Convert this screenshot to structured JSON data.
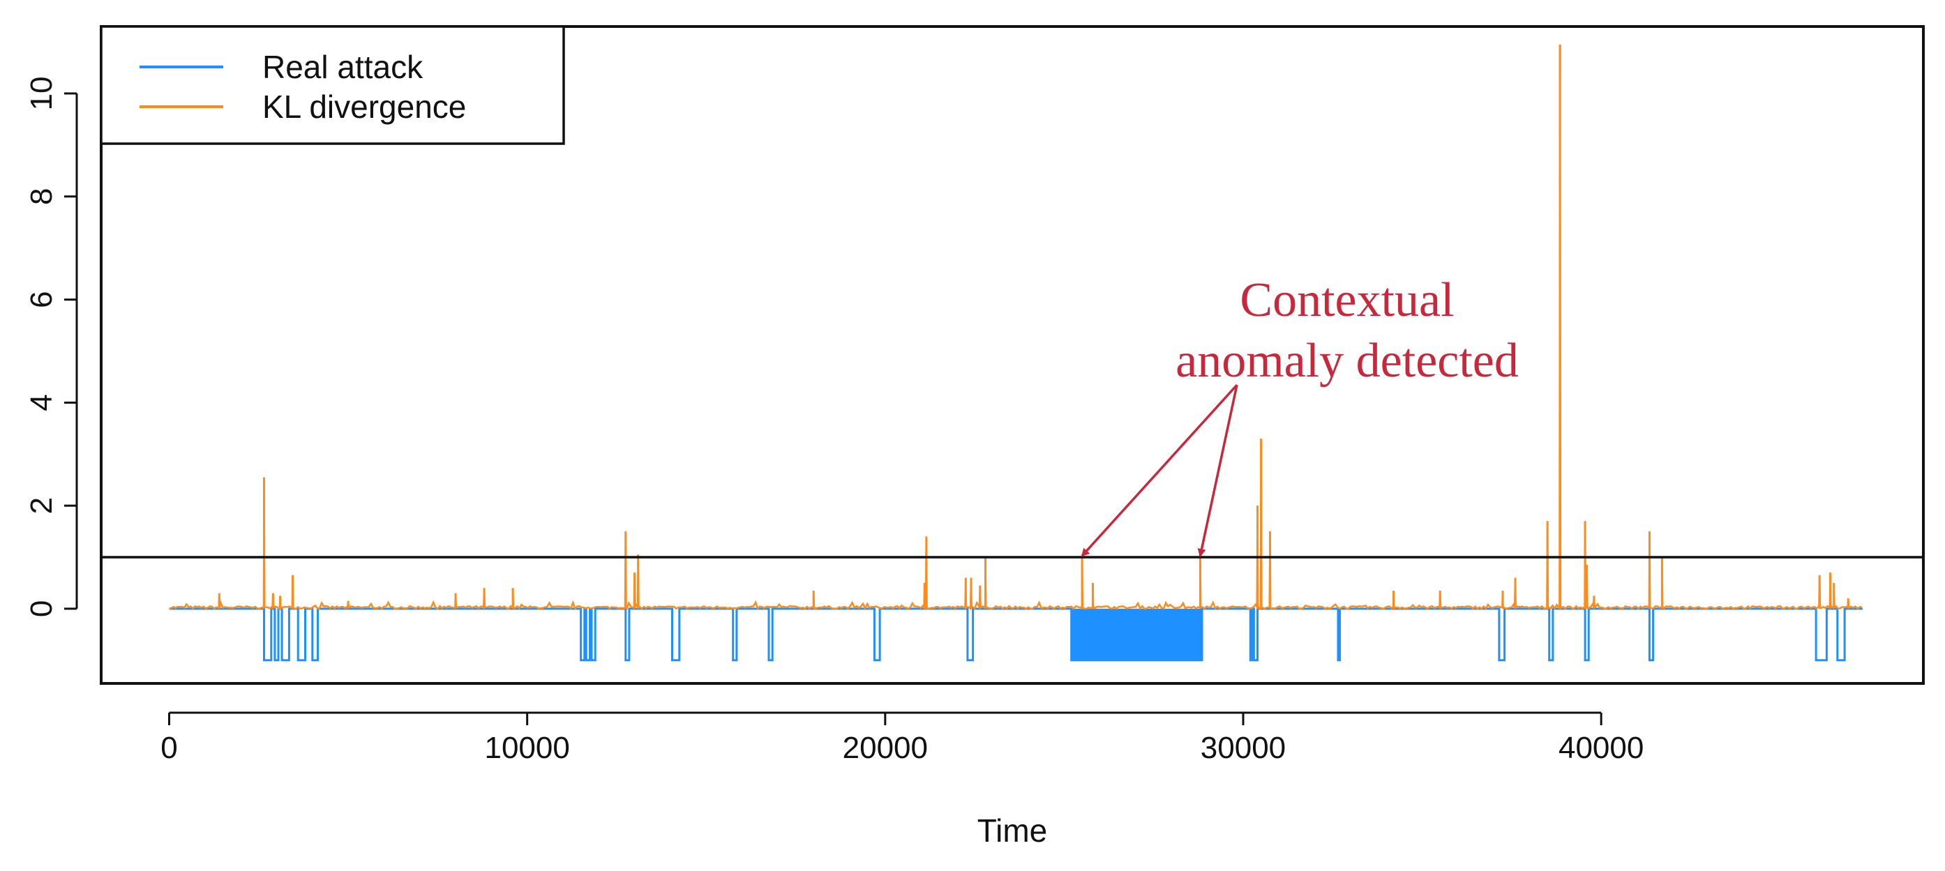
{
  "chart_data": {
    "type": "line",
    "title": "",
    "xlabel": "Time",
    "ylabel": "",
    "xlim": [
      -1900,
      49000
    ],
    "ylim": [
      -1.45,
      11.3
    ],
    "x_ticks": [
      0,
      10000,
      20000,
      30000,
      40000
    ],
    "x_tick_labels": [
      "0",
      "10000",
      "20000",
      "30000",
      "40000"
    ],
    "y_ticks": [
      0,
      2,
      4,
      6,
      8,
      10
    ],
    "y_tick_labels": [
      "0",
      "2",
      "4",
      "6",
      "8",
      "10"
    ],
    "grid": false,
    "legend_position": "top-left",
    "threshold": 1,
    "series": [
      {
        "name": "Real attack",
        "color": "#1E90FF",
        "baseline": 0,
        "attack_level": -1,
        "attack_intervals": [
          [
            2650,
            2850
          ],
          [
            2950,
            3050
          ],
          [
            3150,
            3350
          ],
          [
            3600,
            3800
          ],
          [
            4000,
            4150
          ],
          [
            11500,
            11600
          ],
          [
            11650,
            11750
          ],
          [
            11800,
            11900
          ],
          [
            12750,
            12850
          ],
          [
            14050,
            14250
          ],
          [
            15750,
            15850
          ],
          [
            16750,
            16850
          ],
          [
            19700,
            19850
          ],
          [
            22300,
            22450
          ],
          [
            25200,
            28850
          ],
          [
            30200,
            30250
          ],
          [
            30300,
            30400
          ],
          [
            32650,
            32700
          ],
          [
            37150,
            37300
          ],
          [
            38550,
            38650
          ],
          [
            39550,
            39650
          ],
          [
            41350,
            41450
          ],
          [
            46000,
            46300
          ],
          [
            46600,
            46800
          ]
        ]
      },
      {
        "name": "KL divergence",
        "color": "#FF8C1A",
        "noise_level": 0.05,
        "x_max": 47300,
        "spikes": [
          [
            1400,
            0.3
          ],
          [
            2650,
            2.55
          ],
          [
            2900,
            0.3
          ],
          [
            3100,
            0.25
          ],
          [
            3450,
            0.65
          ],
          [
            5000,
            0.15
          ],
          [
            8000,
            0.3
          ],
          [
            8800,
            0.4
          ],
          [
            9600,
            0.4
          ],
          [
            12750,
            1.5
          ],
          [
            13100,
            1.05
          ],
          [
            13000,
            0.7
          ],
          [
            18000,
            0.35
          ],
          [
            21150,
            1.4
          ],
          [
            21100,
            0.5
          ],
          [
            22250,
            0.6
          ],
          [
            22400,
            0.6
          ],
          [
            22800,
            1.0
          ],
          [
            22650,
            0.45
          ],
          [
            25500,
            1.0
          ],
          [
            25800,
            0.5
          ],
          [
            28800,
            1.05
          ],
          [
            30400,
            2.0
          ],
          [
            30500,
            3.3
          ],
          [
            30750,
            1.5
          ],
          [
            34200,
            0.35
          ],
          [
            35500,
            0.35
          ],
          [
            37250,
            0.35
          ],
          [
            37600,
            0.6
          ],
          [
            38500,
            1.7
          ],
          [
            38850,
            10.95
          ],
          [
            39550,
            1.7
          ],
          [
            39600,
            0.85
          ],
          [
            39800,
            0.25
          ],
          [
            41350,
            1.5
          ],
          [
            41700,
            1.0
          ],
          [
            46100,
            0.65
          ],
          [
            46400,
            0.7
          ],
          [
            46500,
            0.5
          ],
          [
            46900,
            0.2
          ]
        ]
      }
    ],
    "annotations": [
      {
        "text_lines": [
          "Contextual",
          "anomaly detected"
        ],
        "color": "#C8283C",
        "arrow_targets": [
          [
            25500,
            1.0
          ],
          [
            28800,
            1.0
          ]
        ]
      }
    ]
  }
}
